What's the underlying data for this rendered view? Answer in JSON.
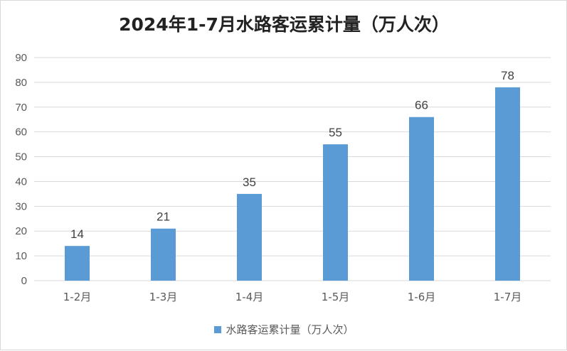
{
  "chart_data": {
    "type": "bar",
    "title": "2024年1-7月水路客运累计量（万人次）",
    "categories": [
      "1-2月",
      "1-3月",
      "1-4月",
      "1-5月",
      "1-6月",
      "1-7月"
    ],
    "series": [
      {
        "name": "水路客运累计量（万人次）",
        "values": [
          14,
          21,
          35,
          55,
          66,
          78
        ]
      }
    ],
    "ylim": [
      0,
      90
    ],
    "yticks": [
      0,
      10,
      20,
      30,
      40,
      50,
      60,
      70,
      80,
      90
    ],
    "grid": true,
    "legend_position": "bottom",
    "colors": {
      "bar": "#5b9bd5",
      "grid": "#d9d9d9"
    }
  }
}
